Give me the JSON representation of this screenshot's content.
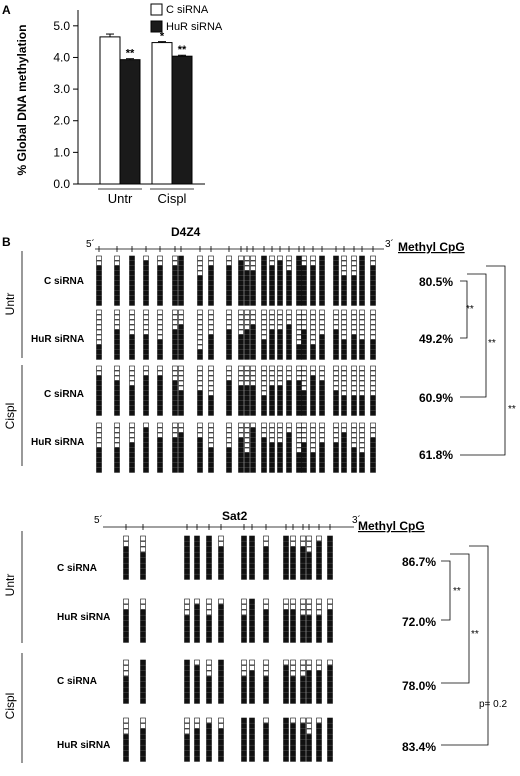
{
  "panel_a": {
    "label": "A",
    "chart_data": {
      "type": "bar",
      "categories": [
        "Untr",
        "Cispl"
      ],
      "series": [
        {
          "name": "C siRNA",
          "values": [
            4.65,
            4.47
          ],
          "errors": [
            0.09,
            0.03
          ],
          "color": "#ffffff"
        },
        {
          "name": "HuR siRNA",
          "values": [
            3.93,
            4.04
          ],
          "errors": [
            0.03,
            0.03
          ],
          "color": "#1a1a1a"
        }
      ],
      "significance": [
        [
          "",
          "**"
        ],
        [
          "*",
          "**"
        ]
      ],
      "ylabel": "% Global DNA methylation",
      "ylim": [
        0,
        5.5
      ],
      "ticks": [
        "0.0",
        "1.0",
        "2.0",
        "3.0",
        "4.0",
        "5.0"
      ],
      "legend_position": "top-right",
      "grid": false
    }
  },
  "panel_b": {
    "label": "B",
    "methyl_header": "Methyl CpG",
    "groups": [
      "Untr",
      "Cispl"
    ],
    "row_labels": [
      "C siRNA",
      "HuR siRNA",
      "C siRNA",
      "HuR siRNA"
    ],
    "d4z4": {
      "title": "D4Z4",
      "five_prime": "5´",
      "three_prime": "3´",
      "percents": [
        "80.5%",
        "49.2%",
        "60.9%",
        "61.8%"
      ],
      "methylated_fraction": [
        0.805,
        0.492,
        0.609,
        0.618
      ],
      "brackets": [
        "**",
        "**",
        "**"
      ]
    },
    "sat2": {
      "title": "Sat2",
      "five_prime": "5´",
      "three_prime": "3´",
      "percents": [
        "86.7%",
        "72.0%",
        "78.0%",
        "83.4%"
      ],
      "methylated_fraction": [
        0.867,
        0.72,
        0.78,
        0.834
      ],
      "brackets": [
        "**",
        "**",
        "p= 0.2"
      ]
    }
  }
}
